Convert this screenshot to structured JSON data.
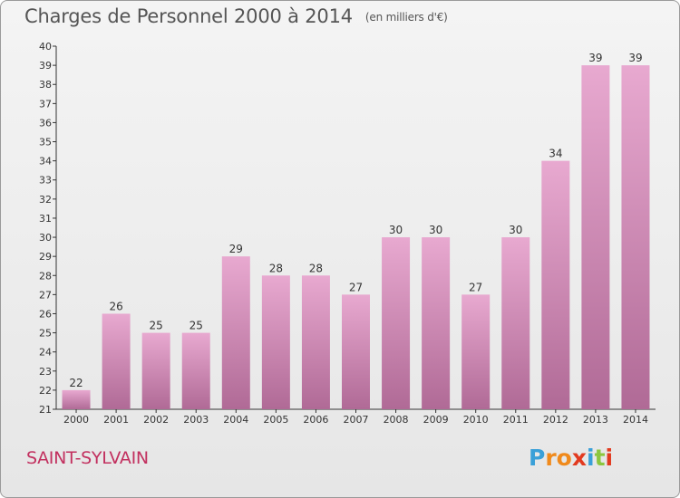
{
  "header": {
    "title": "Charges de Personnel 2000 à 2014",
    "subtitle": "(en milliers d'€)"
  },
  "footer": {
    "commune": "SAINT-SYLVAIN",
    "logo_letters": [
      "P",
      "r",
      "o",
      "x",
      "i",
      "t",
      "i"
    ]
  },
  "colors": {
    "bar_light": "#e8a9d0",
    "bar_dark": "#b06a96",
    "title": "#555555",
    "commune": "#c2305f",
    "logo": [
      "#3aa0d8",
      "#f08a1c",
      "#f08a1c",
      "#e23a1f",
      "#3aa0d8",
      "#8cc63e",
      "#e23a1f"
    ]
  },
  "chart_data": {
    "type": "bar",
    "categories": [
      "2000",
      "2001",
      "2002",
      "2003",
      "2004",
      "2005",
      "2006",
      "2007",
      "2008",
      "2009",
      "2010",
      "2011",
      "2012",
      "2013",
      "2014"
    ],
    "values": [
      22,
      26,
      25,
      25,
      29,
      28,
      28,
      27,
      30,
      30,
      27,
      30,
      34,
      39,
      39
    ],
    "title": "Charges de Personnel 2000 à 2014",
    "subtitle": "(en milliers d'€)",
    "xlabel": "",
    "ylabel": "",
    "ylim": [
      21,
      40
    ],
    "yticks": [
      21,
      22,
      23,
      24,
      25,
      26,
      27,
      28,
      29,
      30,
      31,
      32,
      33,
      34,
      35,
      36,
      37,
      38,
      39,
      40
    ],
    "grid": false,
    "data_labels": true
  }
}
